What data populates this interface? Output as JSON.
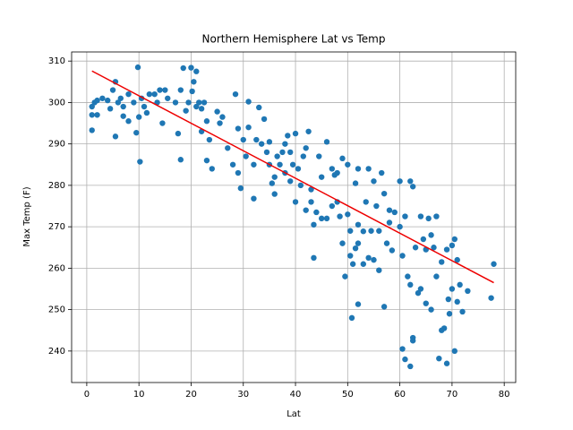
{
  "chart_data": {
    "type": "scatter",
    "title": "Northern Hemisphere Lat vs Temp",
    "x_label": "Lat",
    "y_label": "Max Temp (F)",
    "color": "#1f77b4",
    "grid": true,
    "xlim": [
      -2.9,
      82.2
    ],
    "ylim": [
      232.4,
      312.2
    ],
    "xticks": [
      0,
      10,
      20,
      30,
      40,
      50,
      60,
      70,
      80
    ],
    "yticks": [
      240,
      250,
      260,
      270,
      280,
      290,
      300,
      310
    ],
    "x": [
      1,
      1,
      1,
      1.5,
      2,
      2,
      3,
      4,
      4.5,
      5,
      5.5,
      5.5,
      6,
      6.5,
      7,
      7,
      8,
      8,
      9,
      9.5,
      9.8,
      10,
      10.2,
      10.5,
      11,
      11.5,
      12,
      13,
      13.5,
      14,
      14.5,
      15,
      15.5,
      17,
      17.5,
      18,
      18,
      18.5,
      19,
      19.5,
      20,
      20.2,
      20.5,
      21,
      21,
      21.5,
      22,
      22,
      22.5,
      23,
      23,
      23.5,
      24,
      25,
      25.5,
      26,
      27,
      28,
      28.5,
      29,
      29,
      29.5,
      30,
      30.5,
      31,
      31,
      32,
      32,
      32.5,
      33,
      33.5,
      34,
      34.5,
      35,
      35,
      35.5,
      36,
      36,
      36.5,
      37,
      37.5,
      38,
      38,
      38.5,
      39,
      39,
      39.5,
      40,
      40,
      40.5,
      41,
      41.5,
      42,
      42,
      42.5,
      43,
      43,
      43.5,
      43.5,
      44,
      44.5,
      45,
      45,
      46,
      46,
      47,
      47,
      47.5,
      48,
      48,
      48.5,
      49,
      49,
      49.5,
      50,
      50,
      50.5,
      50.5,
      50.8,
      51,
      51.5,
      51.5,
      52,
      52,
      52,
      52,
      53,
      53,
      53.5,
      54,
      54,
      54.5,
      55,
      55,
      55.5,
      56,
      56,
      56.5,
      57,
      57,
      57.5,
      58,
      58,
      58.5,
      59,
      60,
      60,
      60.5,
      60.5,
      61,
      61,
      61.5,
      62,
      62,
      62,
      62.5,
      62.5,
      62.5,
      63,
      63.5,
      64,
      64,
      64.5,
      65,
      65,
      65.5,
      66,
      66,
      66.5,
      67,
      67,
      67.5,
      68,
      68,
      68.5,
      69,
      69,
      69.3,
      69.5,
      70,
      70,
      70.5,
      70.5,
      71,
      71,
      71.5,
      72,
      73,
      77.5,
      78
    ],
    "values": [
      299,
      297,
      293.3,
      300,
      297,
      300.5,
      301,
      300.5,
      298.5,
      303,
      305,
      291.8,
      300,
      301,
      296.7,
      299,
      302,
      295.5,
      300,
      292.7,
      308.5,
      296.5,
      285.7,
      301,
      299,
      297.5,
      302,
      302,
      300,
      303,
      295,
      303,
      301,
      300,
      292.5,
      286.2,
      303,
      308.3,
      298,
      300,
      308.4,
      302.7,
      305,
      307.5,
      299,
      300,
      298.5,
      293,
      300,
      295.5,
      286,
      291,
      284,
      297.8,
      295,
      296.5,
      289,
      285,
      302,
      293.7,
      283,
      279.3,
      291,
      287,
      300.2,
      294,
      285,
      276.8,
      291,
      298.8,
      290,
      296,
      288,
      285,
      290.5,
      280.5,
      282,
      277.9,
      287,
      285,
      288,
      290,
      283,
      292,
      288,
      281,
      285,
      276,
      292.5,
      284,
      280,
      287,
      289,
      274,
      293,
      279,
      276,
      262.5,
      270.5,
      273.5,
      287,
      282,
      272,
      290.5,
      272,
      284,
      275,
      282.5,
      283,
      276,
      272.5,
      286.5,
      266,
      258,
      285,
      273,
      269,
      263,
      248,
      261,
      280.5,
      264.8,
      284,
      270.5,
      266,
      251.3,
      261,
      268.9,
      276,
      284,
      262.5,
      269,
      281,
      262,
      275,
      269,
      259.5,
      283,
      278,
      250.7,
      266,
      271,
      274,
      264.3,
      273.5,
      281,
      270,
      263,
      240.5,
      238,
      272.5,
      258,
      281,
      256,
      236.3,
      243.2,
      242.5,
      279.7,
      265,
      254,
      272.5,
      255,
      267,
      264.5,
      251.5,
      272,
      250,
      268,
      265,
      272.5,
      258,
      238.2,
      245,
      261.5,
      245.5,
      264.5,
      237,
      252.5,
      249,
      265.5,
      255,
      267,
      240,
      262,
      251.9,
      256,
      249.5,
      254.5,
      252.8,
      261
    ],
    "line": {
      "x": [
        1,
        78
      ],
      "values": [
        307.6,
        256.5
      ],
      "color": "#ee0000"
    }
  }
}
